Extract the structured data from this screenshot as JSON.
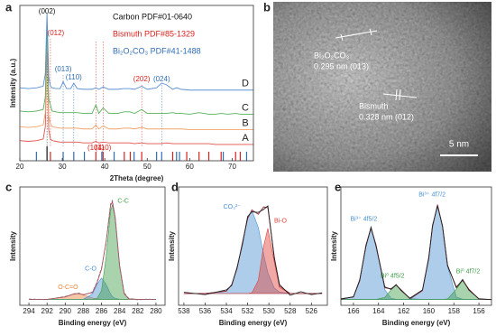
{
  "chart_data": [
    {
      "type": "line",
      "label": "a",
      "xlabel": "2Theta (degree)",
      "ylabel": "Intensity (a.u.)",
      "xlim": [
        20,
        75
      ],
      "xticks": [
        20,
        30,
        40,
        50,
        60,
        70
      ],
      "ylim": [
        0,
        100
      ],
      "x": [
        20,
        22,
        24,
        25.5,
        26,
        26.4,
        26.8,
        27.2,
        27.6,
        28.5,
        29.5,
        30.2,
        31,
        32,
        32.7,
        33.5,
        35,
        37,
        37.9,
        38.6,
        39.6,
        41,
        43,
        44.5,
        45.9,
        47,
        48.7,
        50,
        52.2,
        53.4,
        54.5,
        56,
        56.9,
        58,
        60,
        62.2,
        64.5,
        66,
        67.4,
        69,
        70.8,
        72,
        75
      ],
      "series": [
        {
          "name": "A",
          "color": "#e0524a",
          "values": [
            13,
            12.5,
            13,
            14,
            22,
            80,
            20,
            14,
            13,
            12.5,
            12,
            12,
            12,
            12,
            12,
            12,
            11.5,
            11.5,
            12.5,
            11.5,
            12,
            11.5,
            11.5,
            11.5,
            11.5,
            11,
            11.5,
            11,
            11,
            11,
            11.5,
            11,
            11,
            11,
            11,
            11,
            11,
            10.5,
            10.5,
            10.5,
            10.5,
            10.5,
            10.5
          ]
        },
        {
          "name": "B",
          "color": "#f2a46a",
          "values": [
            22,
            21.5,
            22,
            23,
            31,
            85,
            29,
            24,
            22,
            21.5,
            21,
            21,
            21,
            21,
            21,
            21,
            20.5,
            20.5,
            23,
            20.5,
            22.5,
            20.5,
            20.5,
            21,
            21,
            20.5,
            21.5,
            20.5,
            20.5,
            20.5,
            20.5,
            20.5,
            20.5,
            20.5,
            20,
            20,
            20,
            20,
            20,
            20,
            20,
            20,
            20
          ]
        },
        {
          "name": "C",
          "color": "#58b05a",
          "values": [
            32,
            31.5,
            32,
            33,
            41,
            88,
            40,
            36,
            32,
            31.5,
            31,
            31,
            31,
            31,
            31,
            31,
            30.5,
            30.5,
            36,
            30.5,
            34,
            30.5,
            30.5,
            31.5,
            31.5,
            30.5,
            33,
            30.5,
            30.5,
            30.5,
            30.5,
            31,
            30.5,
            30.5,
            30,
            31,
            30,
            30,
            30.5,
            30,
            30.5,
            30,
            30
          ]
        },
        {
          "name": "D",
          "color": "#5b8fd6",
          "values": [
            47,
            46.5,
            47,
            48,
            56,
            95,
            54,
            48,
            47,
            46.5,
            46.5,
            51,
            46.5,
            46.5,
            50,
            46.5,
            46,
            46,
            47,
            46,
            47.5,
            46,
            46,
            46.5,
            46.5,
            46,
            48,
            46,
            47,
            50,
            49,
            46,
            47,
            46,
            45.5,
            45.5,
            45.5,
            45.5,
            45.5,
            45.5,
            45.5,
            45.5,
            45.5
          ]
        }
      ],
      "references": [
        {
          "name": "Carbon PDF#01-0640",
          "color": "#111111",
          "positions": [
            26.4
          ]
        },
        {
          "name": "Bismuth PDF#85-1329",
          "color": "#d9231f",
          "positions": [
            27.2,
            37.9,
            39.6,
            44.6,
            46.0,
            48.7,
            56.0,
            59.3,
            62.2,
            64.5,
            67.4,
            70.8,
            71.9
          ]
        },
        {
          "name": "Bi₂O₂CO₃ PDF#41-1488",
          "color": "#2f6db5",
          "positions": [
            23.9,
            30.2,
            32.7,
            35.2,
            39.3,
            42.2,
            46.9,
            52.2,
            53.4,
            56.9,
            57.6,
            67.9,
            73.4
          ]
        }
      ],
      "annotations": [
        {
          "text": "(002)",
          "x": 26.4,
          "color": "#111111"
        },
        {
          "text": "(012)",
          "x": 27.2,
          "color": "#d9231f"
        },
        {
          "text": "(013)",
          "x": 30.2,
          "color": "#2f6db5"
        },
        {
          "text": "(110)",
          "x": 32.7,
          "color": "#2f6db5"
        },
        {
          "text": "(202)",
          "x": 48.7,
          "color": "#d9231f"
        },
        {
          "text": "(024)",
          "x": 53.4,
          "color": "#2f6db5"
        },
        {
          "text": "(104)",
          "x": 37.9,
          "color": "#d9231f"
        },
        {
          "text": "(110)",
          "x": 39.6,
          "color": "#d9231f"
        }
      ]
    },
    {
      "type": "image",
      "label": "b",
      "annotations": [
        {
          "text": "Bi₂O₂CO₃"
        },
        {
          "text": "0.295 nm (013)"
        },
        {
          "text": "Bismuth"
        },
        {
          "text": "0.328 nm (012)"
        }
      ],
      "scale_bar": "5 nm"
    },
    {
      "type": "line",
      "label": "c",
      "xlabel": "Binding energy (eV)",
      "ylabel": "Intensity",
      "xlim": [
        295,
        279
      ],
      "xticks": [
        294,
        292,
        290,
        288,
        286,
        284,
        282,
        280
      ],
      "ylim": [
        0,
        100
      ],
      "x": [
        294,
        292,
        290,
        289,
        288.5,
        288,
        287,
        286.5,
        286,
        285.5,
        285,
        284.8,
        284.5,
        284,
        283.5,
        283,
        282,
        281,
        280
      ],
      "series": [
        {
          "name": "O-C=O",
          "color": "#e8833a",
          "fill": true,
          "values": [
            5,
            5,
            7.1,
            9.8,
            9.9,
            8.9,
            6.2,
            5.4,
            5.1,
            5,
            5,
            5,
            5,
            5,
            5,
            5,
            5,
            5,
            5
          ]
        },
        {
          "name": "C-O",
          "color": "#4a90d0",
          "fill": true,
          "values": [
            5,
            5,
            5,
            5,
            5,
            5.1,
            9.5,
            17.7,
            23,
            17.7,
            9.5,
            7.4,
            5.8,
            5.1,
            5,
            5,
            5,
            5,
            5
          ]
        },
        {
          "name": "C-C",
          "color": "#3e9e48",
          "fill": true,
          "values": [
            5,
            5,
            5,
            5,
            5,
            5,
            5,
            5.7,
            12.4,
            40.6,
            79.9,
            85,
            73.9,
            32.8,
            9.9,
            5.4,
            5,
            5,
            5
          ]
        },
        {
          "color": "#d04060",
          "values": [
            5,
            5,
            7.1,
            9.8,
            9.9,
            9,
            10.7,
            18.8,
            30.5,
            53.3,
            84.4,
            87.4,
            74.7,
            32.9,
            9.9,
            5.4,
            5,
            5,
            5
          ]
        },
        {
          "color": "#777777",
          "dash": true,
          "values": [
            5.3,
            4.8,
            7.5,
            9.4,
            10.3,
            8.7,
            11.2,
            19.5,
            31.6,
            52.1,
            85.8,
            88.5,
            73.6,
            33.8,
            10.5,
            5.9,
            4.6,
            5.2,
            4.9
          ]
        }
      ]
    },
    {
      "type": "line",
      "label": "d",
      "xlabel": "Binding energy (eV)",
      "ylabel": "Intensity",
      "xlim": [
        538.5,
        524.5
      ],
      "xticks": [
        538,
        536,
        534,
        532,
        530,
        528,
        526
      ],
      "ylim": [
        0,
        100
      ],
      "x": [
        538,
        536,
        534,
        533.5,
        533,
        532.5,
        532,
        531.6,
        531,
        530.5,
        530.1,
        529.5,
        529,
        528,
        527,
        526,
        525
      ],
      "series": [
        {
          "name": "CO₃²⁻",
          "color": "#4a90d0",
          "fill": true,
          "values": [
            10,
            10,
            12,
            17.5,
            30.9,
            52.5,
            73.4,
            80,
            66,
            43.2,
            27.5,
            14.6,
            11.1,
            10,
            10,
            10,
            10
          ]
        },
        {
          "name": "Bi-O",
          "color": "#e0403a",
          "fill": true,
          "values": [
            10,
            10,
            10,
            10,
            10,
            10,
            10,
            10.6,
            20.9,
            49.9,
            65,
            36.8,
            14.9,
            10,
            10,
            10,
            10
          ]
        },
        {
          "color": "#9a2a3a",
          "values": [
            10,
            10,
            12,
            17.5,
            30.9,
            52.5,
            73.4,
            80.6,
            76.9,
            83.1,
            82.5,
            41.4,
            16,
            10,
            10,
            10,
            10
          ]
        },
        {
          "color": "#222222",
          "values": [
            11,
            9,
            13,
            16.8,
            32,
            51,
            75,
            79,
            78.5,
            81,
            84,
            40,
            17.5,
            8.5,
            11.5,
            9,
            10.5
          ]
        }
      ]
    },
    {
      "type": "line",
      "label": "e",
      "xlabel": "Binding energy (eV)",
      "ylabel": "Intensity",
      "xlim": [
        167,
        155
      ],
      "xticks": [
        166,
        164,
        162,
        160,
        158,
        156
      ],
      "ylim": [
        0,
        100
      ],
      "x": [
        167,
        166,
        165.5,
        165,
        164.6,
        164.2,
        163.5,
        163,
        162.6,
        162.2,
        161.5,
        160.5,
        160,
        159.7,
        159.3,
        158.9,
        158.5,
        157.8,
        157.3,
        156.8,
        156,
        155
      ],
      "series": [
        {
          "name": "Bi³⁺ 4f5/2",
          "color": "#4a90d0",
          "fill": true,
          "values": [
            5,
            7.3,
            20.7,
            51.1,
            65,
            51.1,
            13.1,
            5.9,
            5.1,
            5,
            5,
            5,
            5,
            5,
            5,
            5,
            5,
            5,
            5,
            5,
            5,
            5
          ]
        },
        {
          "name": "Bi⁰ 4f5/2",
          "color": "#3e9e48",
          "fill": true,
          "values": [
            5,
            5,
            5,
            5,
            5,
            5,
            6.6,
            13.1,
            17,
            13.1,
            5.6,
            5,
            5,
            5,
            5,
            5,
            5,
            5,
            5,
            5,
            5,
            5
          ]
        },
        {
          "name": "Bi³⁺ 4f7/2",
          "color": "#4a90d0",
          "fill": true,
          "values": [
            5,
            5,
            5,
            5,
            5,
            5,
            5,
            5,
            5,
            5,
            5,
            12.4,
            40.6,
            66.4,
            85,
            66.4,
            32.8,
            6.9,
            5.1,
            5,
            5,
            5
          ]
        },
        {
          "name": "Bi⁰ 4f7/2",
          "color": "#3e9e48",
          "fill": true,
          "values": [
            5,
            5,
            5,
            5,
            5,
            5,
            5,
            5,
            5,
            5,
            5,
            5,
            5,
            5,
            5,
            5,
            5.4,
            13.6,
            21,
            13.6,
            5.2,
            5
          ]
        },
        {
          "color": "#9a2a3a",
          "values": [
            5,
            7.3,
            20.7,
            51.1,
            65,
            51.1,
            14.7,
            14,
            17.1,
            13.1,
            5.6,
            12.4,
            40.6,
            66.4,
            85,
            66.4,
            33.2,
            15.5,
            21.1,
            13.6,
            5.2,
            5
          ]
        },
        {
          "color": "#222222",
          "values": [
            5.5,
            7,
            21.5,
            50,
            66,
            50,
            15.5,
            13.5,
            17.5,
            12.5,
            6,
            13,
            39.5,
            67.5,
            84,
            67,
            33.8,
            14.8,
            21.8,
            12.8,
            5.6,
            4.7
          ]
        }
      ]
    }
  ]
}
